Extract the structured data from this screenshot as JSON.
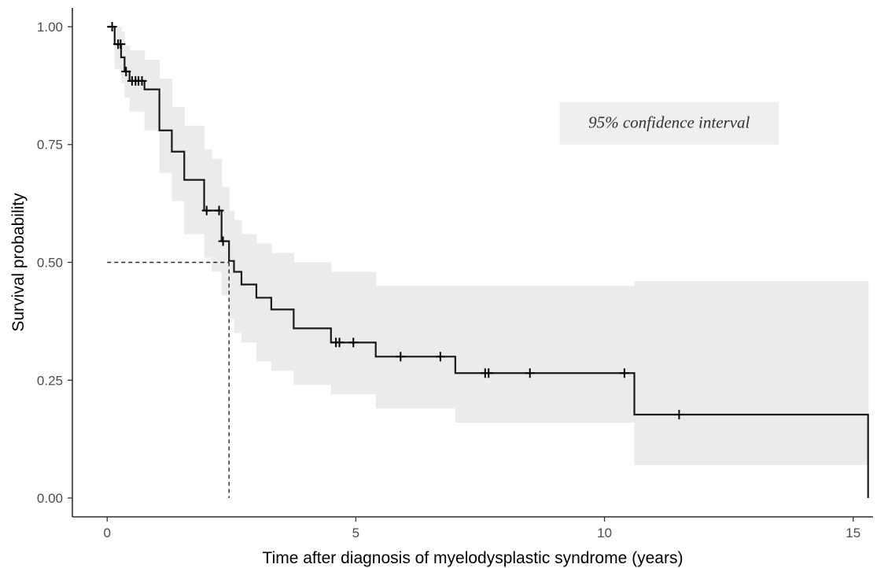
{
  "chart_data": {
    "type": "line",
    "subtype": "kaplan-meier-step",
    "title": "",
    "xlabel": "Time after diagnosis of myelodysplastic syndrome (years)",
    "ylabel": "Survival probability",
    "xlim": [
      -0.7,
      15.4
    ],
    "ylim": [
      -0.04,
      1.04
    ],
    "xticks": [
      0,
      5,
      10,
      15
    ],
    "xtick_labels": [
      "0",
      "5",
      "10",
      "15"
    ],
    "yticks": [
      0,
      0.25,
      0.5,
      0.75,
      1.0
    ],
    "ytick_labels": [
      "0.00",
      "0.25",
      "0.50",
      "0.75",
      "1.00"
    ],
    "grid": false,
    "annotation": {
      "text": "95% confidence interval",
      "x": [
        9.1,
        13.5
      ],
      "y": [
        0.75,
        0.84
      ],
      "fill": "#efefef"
    },
    "median_survival": {
      "x": 2.45,
      "y": 0.5
    },
    "colors": {
      "line": "#1a1a1a",
      "ci_band": "#ebebeb",
      "axis": "#000000",
      "tick_text": "#4d4d4d"
    },
    "series": [
      {
        "x": [
          0,
          0.15,
          0.28,
          0.35,
          0.45,
          0.75,
          1.05,
          1.3,
          1.55,
          1.95,
          2.1,
          2.3,
          2.45,
          2.55,
          2.7,
          3.0,
          3.3,
          3.75,
          4.5,
          5.4,
          7.0,
          10.6,
          15.3
        ],
        "y": [
          1.0,
          0.963,
          0.935,
          0.905,
          0.885,
          0.867,
          0.78,
          0.735,
          0.675,
          0.61,
          0.61,
          0.545,
          0.503,
          0.48,
          0.453,
          0.425,
          0.4,
          0.36,
          0.33,
          0.3,
          0.265,
          0.177,
          0.0
        ],
        "ci_lower": [
          1.0,
          0.91,
          0.88,
          0.85,
          0.82,
          0.78,
          0.69,
          0.63,
          0.56,
          0.51,
          0.48,
          0.43,
          0.38,
          0.35,
          0.33,
          0.29,
          0.27,
          0.24,
          0.22,
          0.19,
          0.16,
          0.07,
          null
        ],
        "ci_upper": [
          1.0,
          1.0,
          0.99,
          0.96,
          0.95,
          0.93,
          0.89,
          0.83,
          0.79,
          0.74,
          0.72,
          0.66,
          0.61,
          0.59,
          0.56,
          0.54,
          0.52,
          0.5,
          0.48,
          0.45,
          0.45,
          0.46,
          null
        ],
        "censored_times": [
          0.1,
          0.22,
          0.27,
          0.38,
          0.5,
          0.57,
          0.63,
          0.7,
          2.0,
          2.25,
          2.33,
          4.6,
          4.67,
          4.95,
          5.9,
          6.7,
          7.6,
          7.67,
          8.5,
          10.4,
          11.5
        ]
      }
    ]
  }
}
